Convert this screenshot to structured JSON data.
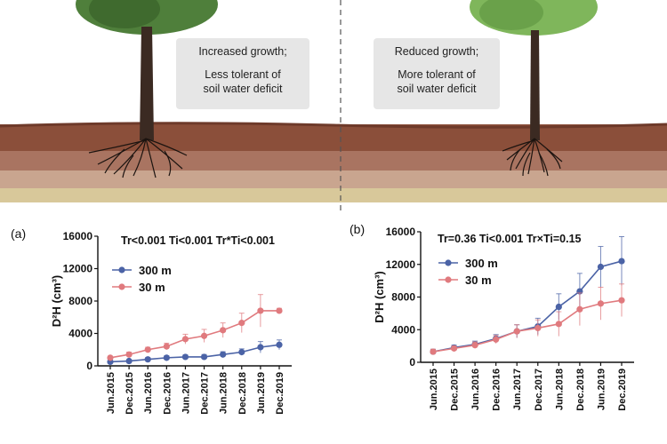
{
  "illustration": {
    "left_box": {
      "line1": "Increased growth;",
      "line2": "Less tolerant of",
      "line3": "soil water deficit"
    },
    "right_box": {
      "line1": "Reduced growth;",
      "line2": "More tolerant of",
      "line3": "soil water deficit"
    },
    "colors": {
      "soil_top": "#8b4f3a",
      "soil_mid": "#a97461",
      "soil_low": "#c9a58f",
      "soil_base": "#d8c89a",
      "foliage_left": "#4f7f3b",
      "foliage_right": "#7fb65b",
      "trunk": "#3b2a22"
    }
  },
  "chart_data": [
    {
      "panel_label": "(a)",
      "type": "line",
      "annotation": "Tr<0.001 Ti<0.001 Tr*Ti<0.001",
      "ylabel": "D²H (cm³)",
      "ylim": [
        0,
        16000
      ],
      "yticks": [
        "0",
        "4000",
        "8000",
        "12000",
        "16000"
      ],
      "categories": [
        "Jun.2015",
        "Dec.2015",
        "Jun.2016",
        "Dec.2016",
        "Jun.2017",
        "Dec.2017",
        "Jun.2018",
        "Dec.2018",
        "Jun.2019",
        "Dec.2019"
      ],
      "legend_position": "top-left",
      "series": [
        {
          "name": "300 m",
          "color": "#4b63a6",
          "values": [
            500,
            600,
            800,
            1000,
            1100,
            1100,
            1400,
            1700,
            2300,
            2600
          ],
          "errors": [
            100,
            150,
            200,
            250,
            250,
            300,
            350,
            400,
            700,
            600
          ]
        },
        {
          "name": "30 m",
          "color": "#e07a7e",
          "values": [
            1000,
            1400,
            2000,
            2400,
            3300,
            3700,
            4400,
            5300,
            6800,
            6800
          ],
          "errors": [
            200,
            300,
            300,
            400,
            600,
            800,
            900,
            1200,
            2000,
            300
          ]
        }
      ]
    },
    {
      "panel_label": "(b)",
      "type": "line",
      "annotation": "Tr=0.36 Ti<0.001 Tr×Ti=0.15",
      "ylabel": "D²H (cm³)",
      "ylim": [
        0,
        16000
      ],
      "yticks": [
        "0",
        "4000",
        "8000",
        "12000",
        "16000"
      ],
      "categories": [
        "Jun.2015",
        "Dec.2015",
        "Jun.2016",
        "Dec.2016",
        "Jun.2017",
        "Dec.2017",
        "Jun.2018",
        "Dec.2018",
        "Jun.2019",
        "Dec.2019"
      ],
      "legend_position": "top-left",
      "series": [
        {
          "name": "300 m",
          "color": "#4b63a6",
          "values": [
            1300,
            1800,
            2200,
            2900,
            3800,
            4400,
            6800,
            8700,
            11700,
            12400
          ],
          "errors": [
            300,
            300,
            400,
            500,
            800,
            1000,
            1600,
            2200,
            2500,
            3000
          ]
        },
        {
          "name": "30 m",
          "color": "#e07a7e",
          "values": [
            1300,
            1700,
            2100,
            2800,
            3800,
            4200,
            4700,
            6500,
            7200,
            7600
          ],
          "errors": [
            300,
            300,
            400,
            500,
            800,
            1000,
            1500,
            2000,
            2000,
            2000
          ]
        }
      ]
    }
  ]
}
